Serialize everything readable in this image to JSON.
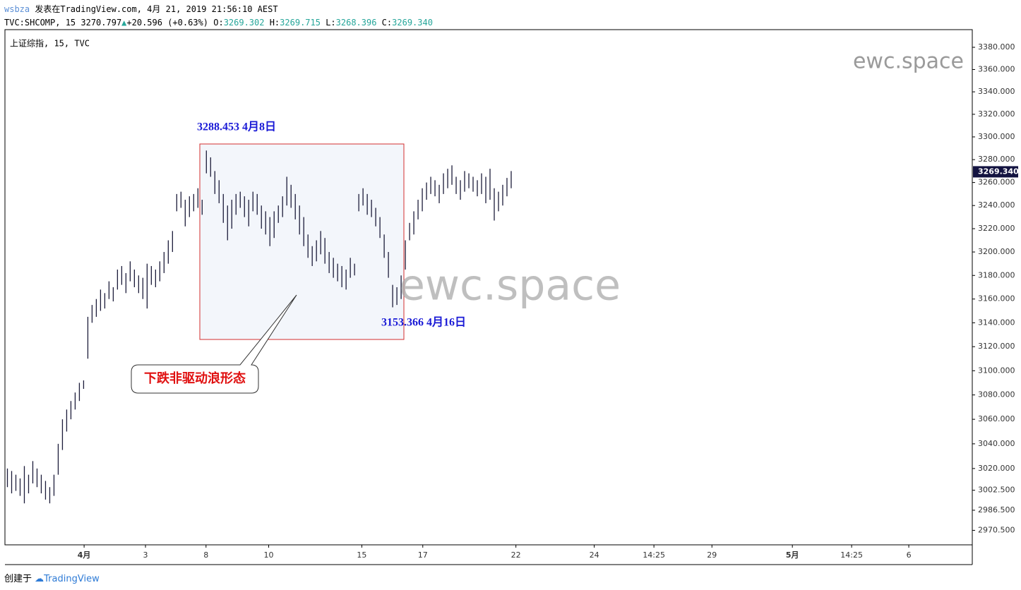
{
  "header": {
    "user": "wsbza",
    "published": "发表在TradingView.com, 4月 21, 2019 21:56:10 AEST",
    "line2": [
      {
        "text": "TVC:SHCOMP, 15 3270.797",
        "color": "#000000"
      },
      {
        "text": "▲",
        "color": "#26a69a"
      },
      {
        "text": "+20.596 (+0.63%)",
        "color": "#000000"
      },
      {
        "text": " O:",
        "color": "#000000"
      },
      {
        "text": "3269.302",
        "color": "#26a69a"
      },
      {
        "text": " H:",
        "color": "#000000"
      },
      {
        "text": "3269.715",
        "color": "#26a69a"
      },
      {
        "text": " L:",
        "color": "#000000"
      },
      {
        "text": "3268.396",
        "color": "#26a69a"
      },
      {
        "text": " C:",
        "color": "#000000"
      },
      {
        "text": "3269.340",
        "color": "#26a69a"
      }
    ]
  },
  "chart_data": {
    "type": "hilo",
    "legend": "上证综指, 15, TVC",
    "log_scale": true,
    "color": "#1c1c3a",
    "xlim": [
      -0.5,
      228
    ],
    "ylim": [
      2959,
      3396
    ],
    "xticks": [
      {
        "value": 18.2,
        "label": "4月",
        "bold": true
      },
      {
        "value": 32.7,
        "label": "3"
      },
      {
        "value": 47,
        "label": "8"
      },
      {
        "value": 61.8,
        "label": "10"
      },
      {
        "value": 83.8,
        "label": "15"
      },
      {
        "value": 98.2,
        "label": "17"
      },
      {
        "value": 120.2,
        "label": "22"
      },
      {
        "value": 138.7,
        "label": "24"
      },
      {
        "value": 152.8,
        "label": "14:25"
      },
      {
        "value": 166.5,
        "label": "29"
      },
      {
        "value": 185.5,
        "label": "5月",
        "bold": true
      },
      {
        "value": 199.5,
        "label": "14:25"
      },
      {
        "value": 213,
        "label": "6"
      }
    ],
    "yticks": [
      {
        "value": 3380,
        "label": "3380.000"
      },
      {
        "value": 3360,
        "label": "3360.000"
      },
      {
        "value": 3340,
        "label": "3340.000"
      },
      {
        "value": 3320,
        "label": "3320.000"
      },
      {
        "value": 3300,
        "label": "3300.000"
      },
      {
        "value": 3280,
        "label": "3280.000"
      },
      {
        "value": 3260,
        "label": "3260.000"
      },
      {
        "value": 3240,
        "label": "3240.000"
      },
      {
        "value": 3220,
        "label": "3220.000"
      },
      {
        "value": 3200,
        "label": "3200.000"
      },
      {
        "value": 3180,
        "label": "3180.000"
      },
      {
        "value": 3160,
        "label": "3160.000"
      },
      {
        "value": 3140,
        "label": "3140.000"
      },
      {
        "value": 3120,
        "label": "3120.000"
      },
      {
        "value": 3100,
        "label": "3100.000"
      },
      {
        "value": 3080,
        "label": "3080.000"
      },
      {
        "value": 3060,
        "label": "3060.000"
      },
      {
        "value": 3040,
        "label": "3040.000"
      },
      {
        "value": 3020,
        "label": "3020.000"
      },
      {
        "value": 3002.5,
        "label": "3002.500"
      },
      {
        "value": 2986.5,
        "label": "2986.500"
      },
      {
        "value": 2970.5,
        "label": "2970.500"
      }
    ],
    "last_price": {
      "value": 3269.34,
      "label": "3269.340"
    },
    "high": [
      3020,
      3018,
      3015,
      3012,
      3022,
      3015,
      3026,
      3020,
      3015,
      3010,
      3005,
      3015,
      3040,
      3060,
      3068,
      3075,
      3082,
      3090,
      3092,
      3145,
      3155,
      3160,
      3168,
      3165,
      3175,
      3170,
      3185,
      3188,
      3182,
      3192,
      3185,
      3180,
      3178,
      3190,
      3188,
      3185,
      3192,
      3200,
      3210,
      3218,
      3250,
      3252,
      3245,
      3248,
      3250,
      3255,
      3245,
      3288,
      3282,
      3270,
      3262,
      3250,
      3240,
      3245,
      3250,
      3252,
      3248,
      3245,
      3252,
      3250,
      3240,
      3235,
      3230,
      3235,
      3240,
      3248,
      3265,
      3258,
      3250,
      3240,
      3230,
      3215,
      3205,
      3210,
      3218,
      3212,
      3200,
      3195,
      3190,
      3188,
      3185,
      3195,
      3190,
      3250,
      3255,
      3250,
      3245,
      3238,
      3230,
      3215,
      3200,
      3172,
      3170,
      3180,
      3210,
      3225,
      3235,
      3245,
      3255,
      3260,
      3265,
      3262,
      3258,
      3268,
      3272,
      3275,
      3265,
      3262,
      3270,
      3268,
      3265,
      3262,
      3268,
      3265,
      3272,
      3255,
      3252,
      3258,
      3264,
      3270
    ],
    "low": [
      3005,
      3000,
      3002,
      2998,
      2992,
      3000,
      3008,
      3005,
      3000,
      2995,
      2992,
      2998,
      3015,
      3035,
      3050,
      3060,
      3068,
      3075,
      3085,
      3110,
      3140,
      3145,
      3150,
      3152,
      3160,
      3158,
      3168,
      3172,
      3165,
      3175,
      3170,
      3165,
      3160,
      3152,
      3172,
      3170,
      3175,
      3182,
      3190,
      3200,
      3235,
      3238,
      3222,
      3230,
      3235,
      3238,
      3232,
      3268,
      3265,
      3250,
      3242,
      3225,
      3210,
      3220,
      3232,
      3238,
      3230,
      3222,
      3235,
      3232,
      3220,
      3215,
      3205,
      3212,
      3225,
      3230,
      3240,
      3238,
      3228,
      3215,
      3205,
      3195,
      3188,
      3192,
      3198,
      3190,
      3182,
      3178,
      3175,
      3170,
      3168,
      3178,
      3180,
      3235,
      3240,
      3232,
      3230,
      3222,
      3212,
      3195,
      3178,
      3153,
      3155,
      3160,
      3185,
      3210,
      3215,
      3228,
      3235,
      3245,
      3250,
      3248,
      3242,
      3250,
      3255,
      3258,
      3250,
      3245,
      3252,
      3255,
      3252,
      3248,
      3250,
      3242,
      3245,
      3227,
      3235,
      3240,
      3248,
      3255
    ],
    "annotations": {
      "high_label": "3288.453 4月8日",
      "low_label": "3153.366 4月16日",
      "callout": "下跌非驱动浪形态"
    },
    "watermark": "ewc.space"
  },
  "footer": {
    "created": "创建于",
    "brand": "TradingView"
  }
}
